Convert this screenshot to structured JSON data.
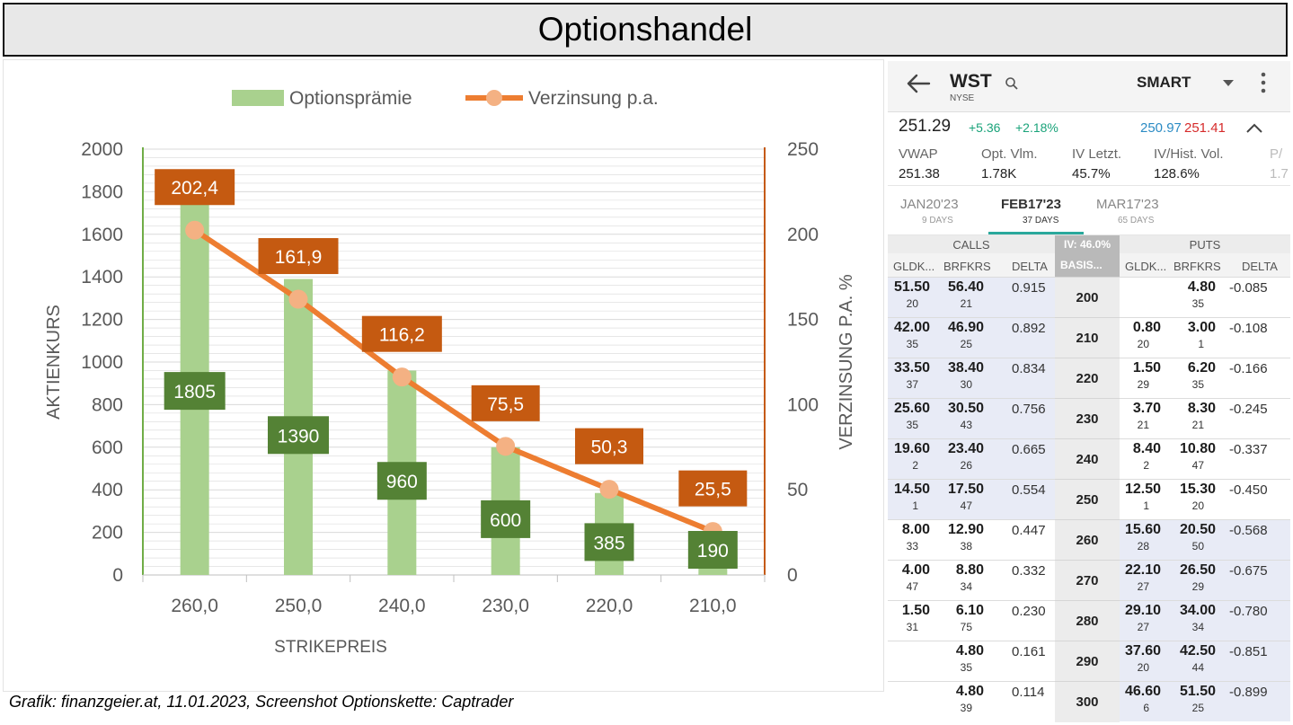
{
  "title": "Optionshandel",
  "caption": "Grafik: finanzgeier.at, 11.01.2023, Screenshot Optionskette: Captrader",
  "colors": {
    "bar": "#a9d18e",
    "line": "#ed7d31",
    "marker": "#f4b183",
    "bar_label_bg": "#548235",
    "line_label_bg": "#c55a11",
    "grid": "#d9d9d9",
    "left_axis": "#70ad47",
    "right_axis": "#c55a11"
  },
  "chart_data": {
    "type": "bar",
    "categories": [
      "260,0",
      "250,0",
      "240,0",
      "230,0",
      "220,0",
      "210,0"
    ],
    "series": [
      {
        "name": "Optionsprämie",
        "type": "bar",
        "axis": "left",
        "values": [
          1805,
          1390,
          960,
          600,
          385,
          190
        ],
        "labels": [
          "1805",
          "1390",
          "960",
          "600",
          "385",
          "190"
        ]
      },
      {
        "name": "Verzinsung p.a.",
        "type": "line",
        "axis": "right",
        "values": [
          202.4,
          161.9,
          116.2,
          75.5,
          50.3,
          25.5
        ],
        "labels": [
          "202,4",
          "161,9",
          "116,2",
          "75,5",
          "50,3",
          "25,5"
        ]
      }
    ],
    "xlabel": "STRIKEPREIS",
    "ylabel": "AKTIENKURS",
    "y2label": "VERZINSUNG P.A. %",
    "ylim": [
      0,
      2000
    ],
    "y2lim": [
      0,
      250
    ],
    "yticks": [
      "0",
      "200",
      "400",
      "600",
      "800",
      "1000",
      "1200",
      "1400",
      "1600",
      "1800",
      "2000"
    ],
    "y2ticks": [
      "0",
      "50",
      "100",
      "150",
      "200",
      "250"
    ],
    "grid": true,
    "legend": "top"
  },
  "phone": {
    "back_icon": "arrow-left-icon",
    "symbol": "WST",
    "exchange": "NYSE",
    "search_icon": "search-icon",
    "route": "SMART",
    "dropdown_icon": "caret-down-icon",
    "menu_icon": "more-vertical-icon",
    "price": "251.29",
    "change": "+5.36",
    "change_pct": "+2.18%",
    "bid": "250.97",
    "ask": "251.41",
    "collapse_icon": "chevron-up-icon",
    "stats": [
      {
        "label": "VWAP",
        "value": "251.38"
      },
      {
        "label": "Opt. Vlm.",
        "value": "1.78K"
      },
      {
        "label": "IV Letzt.",
        "value": "45.7%"
      },
      {
        "label": "IV/Hist. Vol.",
        "value": "128.6%"
      },
      {
        "label": "P/",
        "value": "1.7"
      }
    ],
    "expiries": [
      {
        "label": "JAN20'23",
        "sub": "9 DAYS"
      },
      {
        "label": "FEB17'23",
        "sub": "37 DAYS"
      },
      {
        "label": "MAR17'23",
        "sub": "65 DAYS"
      }
    ],
    "calls_label": "CALLS",
    "iv_label": "IV: 46.0%",
    "puts_label": "PUTS",
    "col_headers": {
      "bid": "GLDK...",
      "ask": "BRFKRS",
      "delta": "DELTA",
      "basis": "BASIS...",
      "put_bid": "GLDK...",
      "put_ask": "BRFKRS",
      "put_delta": "DELTA"
    },
    "rows": [
      {
        "strike": "200",
        "cb": "51.50",
        "cbs": "20",
        "ca": "56.40",
        "cas": "21",
        "cd": "0.915",
        "pb": "",
        "pbs": "",
        "pa": "4.80",
        "pas": "35",
        "pd": "-0.085",
        "itm_call": true
      },
      {
        "strike": "210",
        "cb": "42.00",
        "cbs": "35",
        "ca": "46.90",
        "cas": "25",
        "cd": "0.892",
        "pb": "0.80",
        "pbs": "20",
        "pa": "3.00",
        "pas": "1",
        "pd": "-0.108",
        "itm_call": true
      },
      {
        "strike": "220",
        "cb": "33.50",
        "cbs": "37",
        "ca": "38.40",
        "cas": "30",
        "cd": "0.834",
        "pb": "1.50",
        "pbs": "29",
        "pa": "6.20",
        "pas": "35",
        "pd": "-0.166",
        "itm_call": true
      },
      {
        "strike": "230",
        "cb": "25.60",
        "cbs": "35",
        "ca": "30.50",
        "cas": "43",
        "cd": "0.756",
        "pb": "3.70",
        "pbs": "21",
        "pa": "8.30",
        "pas": "21",
        "pd": "-0.245",
        "itm_call": true
      },
      {
        "strike": "240",
        "cb": "19.60",
        "cbs": "2",
        "ca": "23.40",
        "cas": "26",
        "cd": "0.665",
        "pb": "8.40",
        "pbs": "2",
        "pa": "10.80",
        "pas": "47",
        "pd": "-0.337",
        "itm_call": true
      },
      {
        "strike": "250",
        "cb": "14.50",
        "cbs": "1",
        "ca": "17.50",
        "cas": "47",
        "cd": "0.554",
        "pb": "12.50",
        "pbs": "1",
        "pa": "15.30",
        "pas": "20",
        "pd": "-0.450",
        "itm_call": true
      },
      {
        "strike": "260",
        "cb": "8.00",
        "cbs": "33",
        "ca": "12.90",
        "cas": "38",
        "cd": "0.447",
        "pb": "15.60",
        "pbs": "28",
        "pa": "20.50",
        "pas": "50",
        "pd": "-0.568",
        "itm_call": false
      },
      {
        "strike": "270",
        "cb": "4.00",
        "cbs": "47",
        "ca": "8.80",
        "cas": "34",
        "cd": "0.332",
        "pb": "22.10",
        "pbs": "27",
        "pa": "26.50",
        "pas": "29",
        "pd": "-0.675",
        "itm_call": false
      },
      {
        "strike": "280",
        "cb": "1.50",
        "cbs": "31",
        "ca": "6.10",
        "cas": "75",
        "cd": "0.230",
        "pb": "29.10",
        "pbs": "27",
        "pa": "34.00",
        "pas": "34",
        "pd": "-0.780",
        "itm_call": false
      },
      {
        "strike": "290",
        "cb": "",
        "cbs": "",
        "ca": "4.80",
        "cas": "35",
        "cd": "0.161",
        "pb": "37.60",
        "pbs": "20",
        "pa": "42.50",
        "pas": "44",
        "pd": "-0.851",
        "itm_call": false
      },
      {
        "strike": "300",
        "cb": "",
        "cbs": "",
        "ca": "4.80",
        "cas": "39",
        "cd": "0.114",
        "pb": "46.60",
        "pbs": "6",
        "pa": "51.50",
        "pas": "25",
        "pd": "-0.899",
        "itm_call": false
      }
    ]
  }
}
